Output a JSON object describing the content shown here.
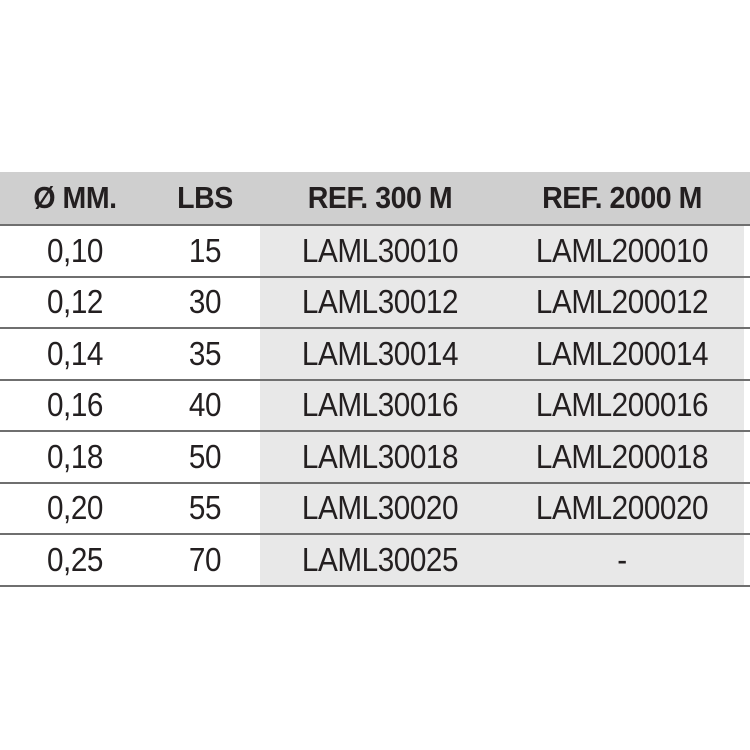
{
  "table": {
    "headers": [
      "Ø MM.",
      "LBS",
      "REF. 300 M",
      "REF. 2000 M"
    ],
    "rows": [
      [
        "0,10",
        "15",
        "LAML30010",
        "LAML200010"
      ],
      [
        "0,12",
        "30",
        "LAML30012",
        "LAML200012"
      ],
      [
        "0,14",
        "35",
        "LAML30014",
        "LAML200014"
      ],
      [
        "0,16",
        "40",
        "LAML30016",
        "LAML200016"
      ],
      [
        "0,18",
        "50",
        "LAML30018",
        "LAML200018"
      ],
      [
        "0,20",
        "55",
        "LAML30020",
        "LAML200020"
      ],
      [
        "0,25",
        "70",
        "LAML30025",
        "-"
      ]
    ]
  },
  "colors": {
    "header_background": "#cfcfcf",
    "reference_columns_background": "#e8e8e8",
    "row_divider": "#6f6f6f",
    "text": "#231f20"
  }
}
